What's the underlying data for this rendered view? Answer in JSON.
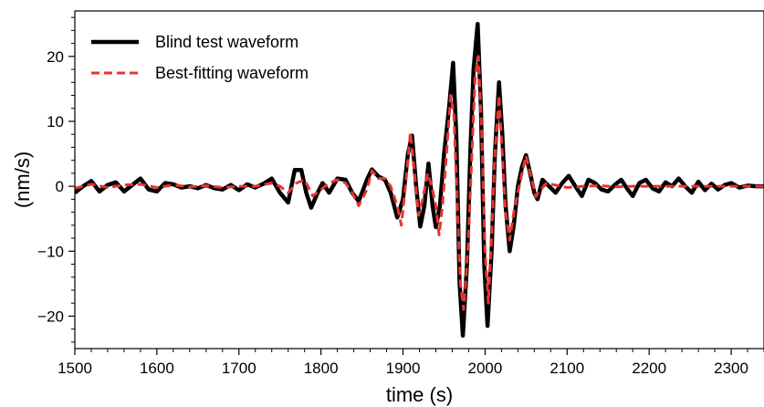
{
  "chart_data": {
    "type": "line",
    "title": "",
    "xlabel": "time (s)",
    "ylabel": "(nm/s)",
    "xlim": [
      1500,
      2340
    ],
    "ylim": [
      -25,
      27
    ],
    "x_ticks": [
      1500,
      1600,
      1700,
      1800,
      1900,
      2000,
      2100,
      2200,
      2300
    ],
    "x_tick_labels": [
      "1500",
      "1600",
      "1700",
      "1800",
      "1900",
      "2000",
      "2100",
      "2200",
      "2300"
    ],
    "y_ticks": [
      20,
      10,
      0,
      -10,
      -20
    ],
    "y_tick_labels": [
      "20",
      "10",
      "0",
      "−10",
      "−20"
    ],
    "grid": false,
    "legend_position": "top-left",
    "series": [
      {
        "name": "Blind test waveform",
        "color": "#000000",
        "style": "solid",
        "points": [
          [
            1500,
            -1
          ],
          [
            1510,
            0
          ],
          [
            1520,
            0.8
          ],
          [
            1530,
            -0.8
          ],
          [
            1540,
            0.2
          ],
          [
            1550,
            0.6
          ],
          [
            1560,
            -0.8
          ],
          [
            1570,
            0.2
          ],
          [
            1580,
            1.2
          ],
          [
            1590,
            -0.5
          ],
          [
            1600,
            -0.8
          ],
          [
            1610,
            0.5
          ],
          [
            1620,
            0.3
          ],
          [
            1630,
            -0.2
          ],
          [
            1640,
            0
          ],
          [
            1650,
            -0.3
          ],
          [
            1660,
            0.2
          ],
          [
            1670,
            -0.3
          ],
          [
            1680,
            -0.5
          ],
          [
            1690,
            0.2
          ],
          [
            1700,
            -0.6
          ],
          [
            1710,
            0.3
          ],
          [
            1720,
            -0.2
          ],
          [
            1730,
            0.4
          ],
          [
            1740,
            1.2
          ],
          [
            1750,
            -1
          ],
          [
            1760,
            -2.5
          ],
          [
            1768,
            2.5
          ],
          [
            1776,
            2.5
          ],
          [
            1782,
            -1
          ],
          [
            1788,
            -3.3
          ],
          [
            1796,
            -1
          ],
          [
            1802,
            0.5
          ],
          [
            1810,
            -1
          ],
          [
            1820,
            1.2
          ],
          [
            1830,
            1
          ],
          [
            1838,
            -1
          ],
          [
            1846,
            -2.3
          ],
          [
            1856,
            1
          ],
          [
            1862,
            2.6
          ],
          [
            1870,
            1.5
          ],
          [
            1878,
            1
          ],
          [
            1885,
            -1
          ],
          [
            1893,
            -4.8
          ],
          [
            1900,
            -2
          ],
          [
            1906,
            5
          ],
          [
            1911,
            7.8
          ],
          [
            1916,
            0
          ],
          [
            1921,
            -6.2
          ],
          [
            1926,
            -3
          ],
          [
            1931,
            3.5
          ],
          [
            1936,
            -3
          ],
          [
            1940,
            -6.3
          ],
          [
            1945,
            -3
          ],
          [
            1950,
            5
          ],
          [
            1956,
            12
          ],
          [
            1961,
            19
          ],
          [
            1965,
            8
          ],
          [
            1969,
            -15
          ],
          [
            1973,
            -23
          ],
          [
            1978,
            -12
          ],
          [
            1982,
            5
          ],
          [
            1986,
            18
          ],
          [
            1991,
            25
          ],
          [
            1995,
            12
          ],
          [
            1999,
            -12
          ],
          [
            2003,
            -21.5
          ],
          [
            2008,
            -10
          ],
          [
            2012,
            5
          ],
          [
            2017,
            16
          ],
          [
            2021,
            8
          ],
          [
            2025,
            -3
          ],
          [
            2030,
            -10
          ],
          [
            2035,
            -6
          ],
          [
            2040,
            0
          ],
          [
            2045,
            3
          ],
          [
            2050,
            4.8
          ],
          [
            2055,
            2
          ],
          [
            2060,
            -1
          ],
          [
            2064,
            -2
          ],
          [
            2070,
            1
          ],
          [
            2078,
            0
          ],
          [
            2086,
            -1
          ],
          [
            2094,
            0.5
          ],
          [
            2102,
            1.6
          ],
          [
            2110,
            0
          ],
          [
            2118,
            -1.5
          ],
          [
            2126,
            1
          ],
          [
            2134,
            0.5
          ],
          [
            2142,
            -0.5
          ],
          [
            2150,
            -0.8
          ],
          [
            2158,
            0.2
          ],
          [
            2166,
            1
          ],
          [
            2174,
            -0.5
          ],
          [
            2180,
            -1.5
          ],
          [
            2188,
            0.5
          ],
          [
            2196,
            1
          ],
          [
            2204,
            -0.3
          ],
          [
            2212,
            -0.8
          ],
          [
            2220,
            0.6
          ],
          [
            2228,
            0
          ],
          [
            2236,
            1.2
          ],
          [
            2244,
            0
          ],
          [
            2252,
            -1
          ],
          [
            2260,
            0.7
          ],
          [
            2268,
            -0.6
          ],
          [
            2276,
            0.4
          ],
          [
            2284,
            -0.5
          ],
          [
            2292,
            0.2
          ],
          [
            2300,
            0.5
          ],
          [
            2310,
            -0.2
          ],
          [
            2320,
            0.1
          ],
          [
            2330,
            0
          ],
          [
            2340,
            0
          ]
        ]
      },
      {
        "name": "Best-fitting waveform",
        "color": "#e8342f",
        "style": "dashed",
        "points": [
          [
            1500,
            -0.3
          ],
          [
            1520,
            0.3
          ],
          [
            1540,
            -0.2
          ],
          [
            1560,
            0.2
          ],
          [
            1580,
            0.3
          ],
          [
            1600,
            -0.2
          ],
          [
            1620,
            0.2
          ],
          [
            1640,
            -0.1
          ],
          [
            1660,
            0.1
          ],
          [
            1680,
            -0.2
          ],
          [
            1700,
            0
          ],
          [
            1720,
            0
          ],
          [
            1740,
            0.5
          ],
          [
            1750,
            0
          ],
          [
            1760,
            -1
          ],
          [
            1770,
            0.5
          ],
          [
            1780,
            1
          ],
          [
            1790,
            -1.5
          ],
          [
            1800,
            -0.5
          ],
          [
            1810,
            0.5
          ],
          [
            1820,
            1
          ],
          [
            1830,
            0.5
          ],
          [
            1838,
            -1
          ],
          [
            1846,
            -3
          ],
          [
            1856,
            -0.5
          ],
          [
            1862,
            2.4
          ],
          [
            1870,
            1.2
          ],
          [
            1878,
            1.2
          ],
          [
            1885,
            0
          ],
          [
            1893,
            -3
          ],
          [
            1898,
            -6
          ],
          [
            1903,
            0
          ],
          [
            1909,
            8.3
          ],
          [
            1914,
            2
          ],
          [
            1919,
            -4.5
          ],
          [
            1924,
            -2
          ],
          [
            1930,
            2
          ],
          [
            1935,
            0
          ],
          [
            1940,
            -3
          ],
          [
            1944,
            -7.5
          ],
          [
            1948,
            -3
          ],
          [
            1953,
            5
          ],
          [
            1958,
            14
          ],
          [
            1962,
            11
          ],
          [
            1966,
            -2
          ],
          [
            1970,
            -15
          ],
          [
            1974,
            -19
          ],
          [
            1979,
            -10
          ],
          [
            1984,
            5
          ],
          [
            1988,
            17
          ],
          [
            1992,
            20
          ],
          [
            1996,
            8
          ],
          [
            2000,
            -10
          ],
          [
            2004,
            -18
          ],
          [
            2008,
            -8
          ],
          [
            2012,
            5
          ],
          [
            2017,
            14
          ],
          [
            2021,
            5
          ],
          [
            2025,
            -4
          ],
          [
            2030,
            -8.3
          ],
          [
            2035,
            -4
          ],
          [
            2040,
            -1
          ],
          [
            2045,
            2
          ],
          [
            2050,
            4.7
          ],
          [
            2055,
            2
          ],
          [
            2062,
            -1.6
          ],
          [
            2068,
            -0.5
          ],
          [
            2075,
            0.5
          ],
          [
            2085,
            0.2
          ],
          [
            2100,
            -0.2
          ],
          [
            2120,
            0
          ],
          [
            2140,
            0.1
          ],
          [
            2160,
            -0.1
          ],
          [
            2180,
            0
          ],
          [
            2200,
            0
          ],
          [
            2250,
            0
          ],
          [
            2300,
            0
          ],
          [
            2340,
            0
          ]
        ]
      }
    ]
  },
  "colors": {
    "axis": "#000000",
    "background": "#ffffff"
  }
}
